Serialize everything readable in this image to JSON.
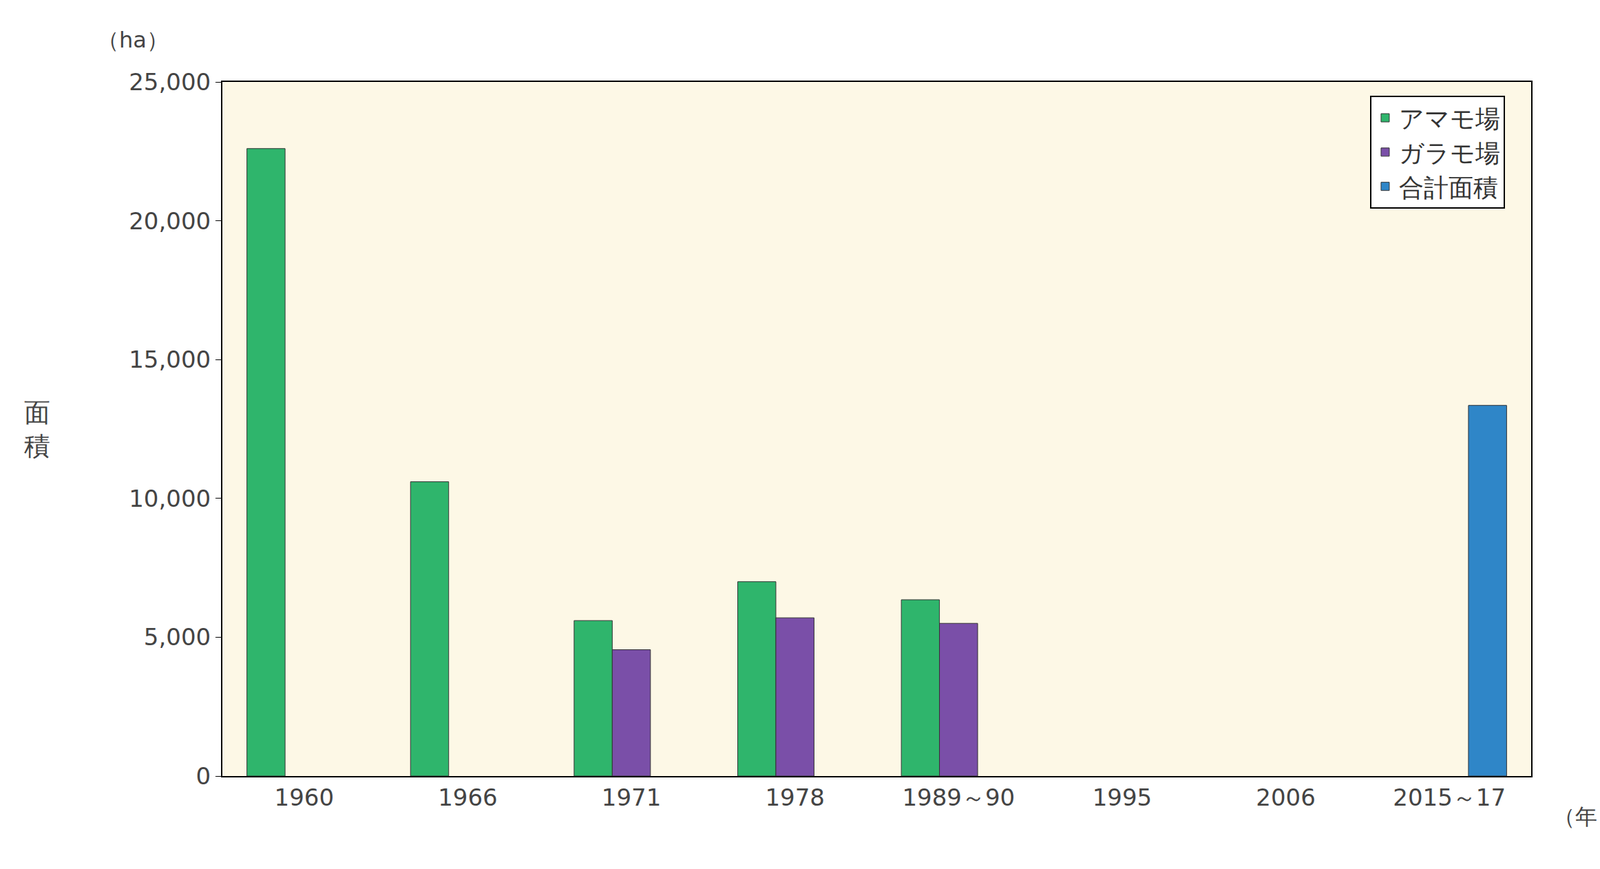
{
  "chart_data": {
    "type": "bar",
    "ylabel": "面積",
    "yunit": "（ha）",
    "xunit": "（年）",
    "categories": [
      "1960",
      "1966",
      "1971",
      "1978",
      "1989～90",
      "1995",
      "2006",
      "2015～17"
    ],
    "series": [
      {
        "name": "アマモ場",
        "color": "#2fb56c",
        "values": [
          22600,
          10600,
          5600,
          7000,
          6350,
          null,
          null,
          null
        ]
      },
      {
        "name": "ガラモ場",
        "color": "#7a4fa8",
        "values": [
          null,
          null,
          4550,
          5700,
          5500,
          null,
          null,
          null
        ]
      },
      {
        "name": "合計面積",
        "color": "#2f86c8",
        "values": [
          null,
          null,
          null,
          null,
          null,
          null,
          null,
          13350
        ]
      }
    ],
    "ylim": [
      0,
      25000
    ],
    "yticks": [
      0,
      {
        "value": 5000,
        "label": "5,000"
      },
      {
        "value": 10000,
        "label": "10,000"
      },
      {
        "value": 15000,
        "label": "15,000"
      },
      {
        "value": 20000,
        "label": "20,000"
      },
      {
        "value": 25000,
        "label": "25,000"
      }
    ],
    "grid": false,
    "legend": "top right"
  }
}
